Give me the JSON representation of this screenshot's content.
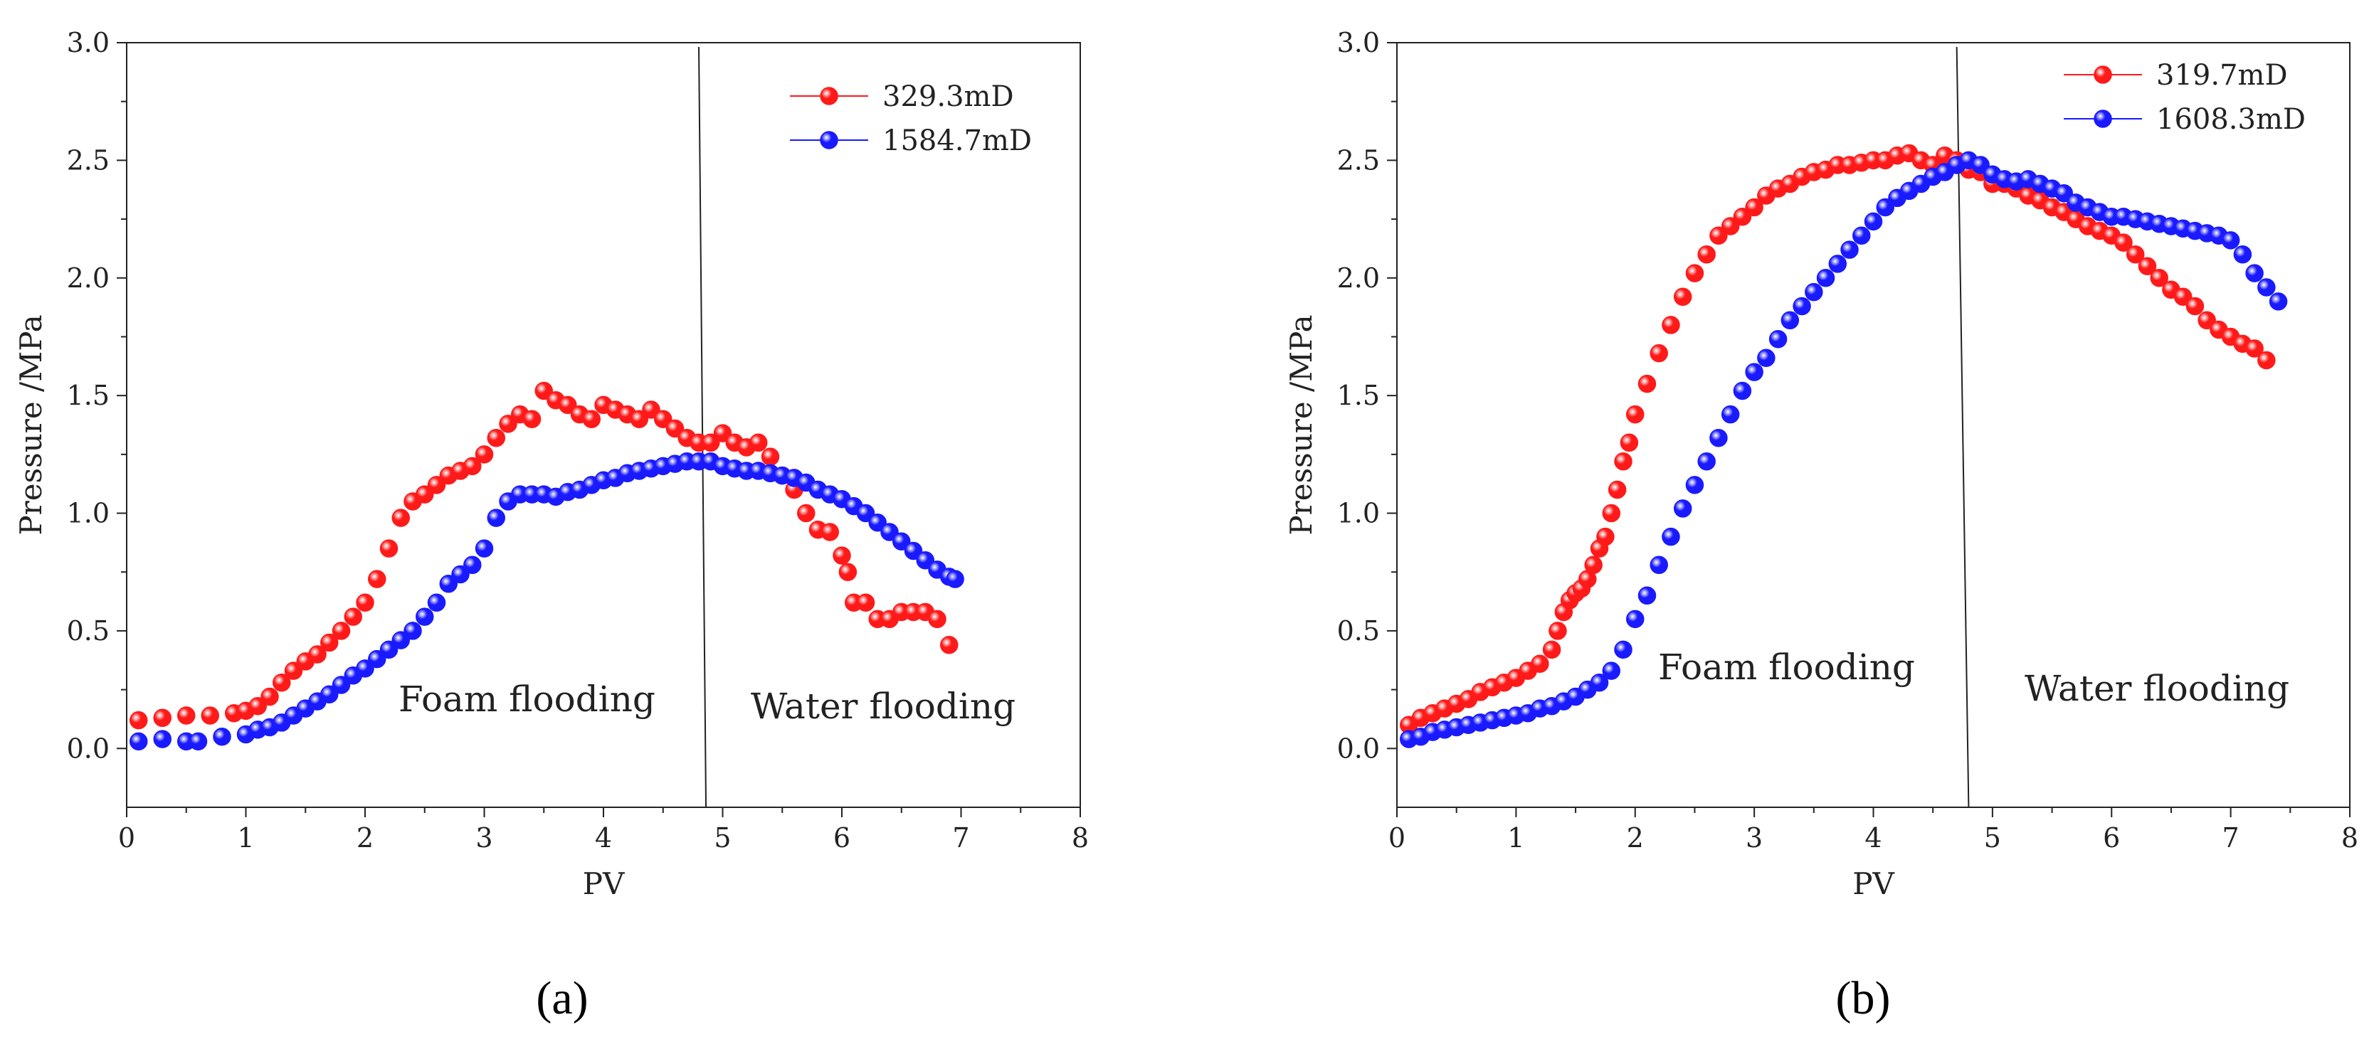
{
  "chart_data": [
    {
      "type": "scatter",
      "panel_label": "(a)",
      "xlabel": "PV",
      "ylabel": "Pressure /MPa",
      "xlim": [
        0,
        8
      ],
      "ylim": [
        -0.25,
        3.0
      ],
      "xticks": [
        "0",
        "1",
        "2",
        "3",
        "4",
        "5",
        "6",
        "7",
        "8"
      ],
      "yticks": [
        "0.0",
        "0.5",
        "1.0",
        "1.5",
        "2.0",
        "2.5",
        "3.0"
      ],
      "legend": {
        "placement": "top-right"
      },
      "annotations": [
        "Foam flooding",
        "Water flooding"
      ],
      "divider": {
        "x_top": 4.8,
        "x_bottom": 4.86
      },
      "series": [
        {
          "name": "329.3mD",
          "color": "#ff1a1a",
          "x": [
            0.1,
            0.3,
            0.5,
            0.7,
            0.9,
            1.0,
            1.1,
            1.2,
            1.3,
            1.4,
            1.5,
            1.6,
            1.7,
            1.8,
            1.9,
            2.0,
            2.1,
            2.2,
            2.3,
            2.4,
            2.5,
            2.6,
            2.7,
            2.8,
            2.9,
            3.0,
            3.1,
            3.2,
            3.3,
            3.4,
            3.5,
            3.6,
            3.7,
            3.8,
            3.9,
            4.0,
            4.1,
            4.2,
            4.3,
            4.4,
            4.5,
            4.6,
            4.7,
            4.8,
            4.9,
            5.0,
            5.1,
            5.2,
            5.3,
            5.4,
            5.5,
            5.6,
            5.7,
            5.8,
            5.9,
            6.0,
            6.05,
            6.1,
            6.2,
            6.3,
            6.4,
            6.5,
            6.6,
            6.7,
            6.8,
            6.9
          ],
          "y": [
            0.12,
            0.13,
            0.14,
            0.14,
            0.15,
            0.16,
            0.18,
            0.22,
            0.28,
            0.33,
            0.37,
            0.4,
            0.45,
            0.5,
            0.56,
            0.62,
            0.72,
            0.85,
            0.98,
            1.05,
            1.08,
            1.12,
            1.16,
            1.18,
            1.2,
            1.25,
            1.32,
            1.38,
            1.42,
            1.4,
            1.52,
            1.48,
            1.46,
            1.42,
            1.4,
            1.46,
            1.44,
            1.42,
            1.4,
            1.44,
            1.4,
            1.36,
            1.32,
            1.3,
            1.3,
            1.34,
            1.3,
            1.28,
            1.3,
            1.24,
            1.16,
            1.1,
            1.0,
            0.93,
            0.92,
            0.82,
            0.75,
            0.62,
            0.62,
            0.55,
            0.55,
            0.58,
            0.58,
            0.58,
            0.55,
            0.44
          ]
        },
        {
          "name": "1584.7mD",
          "color": "#1a1aff",
          "x": [
            0.1,
            0.3,
            0.5,
            0.6,
            0.8,
            1.0,
            1.1,
            1.2,
            1.3,
            1.4,
            1.5,
            1.6,
            1.7,
            1.8,
            1.9,
            2.0,
            2.1,
            2.2,
            2.3,
            2.4,
            2.5,
            2.6,
            2.7,
            2.8,
            2.9,
            3.0,
            3.1,
            3.2,
            3.3,
            3.4,
            3.5,
            3.6,
            3.7,
            3.8,
            3.9,
            4.0,
            4.1,
            4.2,
            4.3,
            4.4,
            4.5,
            4.6,
            4.7,
            4.8,
            4.9,
            5.0,
            5.1,
            5.2,
            5.3,
            5.4,
            5.5,
            5.6,
            5.7,
            5.8,
            5.9,
            6.0,
            6.1,
            6.2,
            6.3,
            6.4,
            6.5,
            6.6,
            6.7,
            6.8,
            6.9,
            6.95
          ],
          "y": [
            0.03,
            0.04,
            0.03,
            0.03,
            0.05,
            0.06,
            0.08,
            0.09,
            0.11,
            0.14,
            0.17,
            0.2,
            0.23,
            0.27,
            0.31,
            0.34,
            0.38,
            0.42,
            0.46,
            0.5,
            0.56,
            0.62,
            0.7,
            0.74,
            0.78,
            0.85,
            0.98,
            1.05,
            1.08,
            1.08,
            1.08,
            1.07,
            1.09,
            1.1,
            1.12,
            1.14,
            1.15,
            1.17,
            1.18,
            1.19,
            1.2,
            1.21,
            1.22,
            1.22,
            1.22,
            1.2,
            1.19,
            1.18,
            1.18,
            1.17,
            1.16,
            1.15,
            1.13,
            1.1,
            1.08,
            1.06,
            1.03,
            1.0,
            0.96,
            0.92,
            0.88,
            0.84,
            0.8,
            0.76,
            0.73,
            0.72
          ]
        }
      ]
    },
    {
      "type": "scatter",
      "panel_label": "(b)",
      "xlabel": "PV",
      "ylabel": "Pressure /MPa",
      "xlim": [
        0,
        8
      ],
      "ylim": [
        -0.25,
        3.0
      ],
      "xticks": [
        "0",
        "1",
        "2",
        "3",
        "4",
        "5",
        "6",
        "7",
        "8"
      ],
      "yticks": [
        "0.0",
        "0.5",
        "1.0",
        "1.5",
        "2.0",
        "2.5",
        "3.0"
      ],
      "legend": {
        "placement": "top-right"
      },
      "annotations": [
        "Foam flooding",
        "Water flooding"
      ],
      "divider": {
        "x_top": 4.7,
        "x_bottom": 4.8
      },
      "series": [
        {
          "name": "319.7mD",
          "color": "#ff1a1a",
          "x": [
            0.1,
            0.2,
            0.3,
            0.4,
            0.5,
            0.6,
            0.7,
            0.8,
            0.9,
            1.0,
            1.1,
            1.2,
            1.3,
            1.35,
            1.4,
            1.45,
            1.5,
            1.55,
            1.6,
            1.65,
            1.7,
            1.75,
            1.8,
            1.85,
            1.9,
            1.95,
            2.0,
            2.1,
            2.2,
            2.3,
            2.4,
            2.5,
            2.6,
            2.7,
            2.8,
            2.9,
            3.0,
            3.1,
            3.2,
            3.3,
            3.4,
            3.5,
            3.6,
            3.7,
            3.8,
            3.9,
            4.0,
            4.1,
            4.2,
            4.3,
            4.4,
            4.5,
            4.6,
            4.7,
            4.8,
            4.9,
            5.0,
            5.1,
            5.2,
            5.3,
            5.4,
            5.5,
            5.6,
            5.7,
            5.8,
            5.9,
            6.0,
            6.1,
            6.2,
            6.3,
            6.4,
            6.5,
            6.6,
            6.7,
            6.8,
            6.9,
            7.0,
            7.1,
            7.2,
            7.3
          ],
          "y": [
            0.1,
            0.13,
            0.15,
            0.17,
            0.19,
            0.21,
            0.24,
            0.26,
            0.28,
            0.3,
            0.33,
            0.36,
            0.42,
            0.5,
            0.58,
            0.63,
            0.66,
            0.68,
            0.72,
            0.78,
            0.85,
            0.9,
            1.0,
            1.1,
            1.22,
            1.3,
            1.42,
            1.55,
            1.68,
            1.8,
            1.92,
            2.02,
            2.1,
            2.18,
            2.22,
            2.26,
            2.3,
            2.35,
            2.38,
            2.4,
            2.43,
            2.45,
            2.46,
            2.48,
            2.48,
            2.49,
            2.5,
            2.5,
            2.52,
            2.53,
            2.5,
            2.48,
            2.52,
            2.5,
            2.46,
            2.45,
            2.4,
            2.4,
            2.38,
            2.35,
            2.33,
            2.3,
            2.28,
            2.25,
            2.22,
            2.2,
            2.18,
            2.15,
            2.1,
            2.05,
            2.0,
            1.95,
            1.92,
            1.88,
            1.82,
            1.78,
            1.75,
            1.72,
            1.7,
            1.65
          ]
        },
        {
          "name": "1608.3mD",
          "color": "#1a1aff",
          "x": [
            0.1,
            0.2,
            0.3,
            0.4,
            0.5,
            0.6,
            0.7,
            0.8,
            0.9,
            1.0,
            1.1,
            1.2,
            1.3,
            1.4,
            1.5,
            1.6,
            1.7,
            1.8,
            1.9,
            2.0,
            2.1,
            2.2,
            2.3,
            2.4,
            2.5,
            2.6,
            2.7,
            2.8,
            2.9,
            3.0,
            3.1,
            3.2,
            3.3,
            3.4,
            3.5,
            3.6,
            3.7,
            3.8,
            3.9,
            4.0,
            4.1,
            4.2,
            4.3,
            4.4,
            4.5,
            4.6,
            4.7,
            4.8,
            4.9,
            5.0,
            5.1,
            5.2,
            5.3,
            5.4,
            5.5,
            5.6,
            5.7,
            5.8,
            5.9,
            6.0,
            6.1,
            6.2,
            6.3,
            6.4,
            6.5,
            6.6,
            6.7,
            6.8,
            6.9,
            7.0,
            7.1,
            7.2,
            7.3,
            7.4
          ],
          "y": [
            0.04,
            0.05,
            0.07,
            0.08,
            0.09,
            0.1,
            0.11,
            0.12,
            0.13,
            0.14,
            0.15,
            0.17,
            0.18,
            0.2,
            0.22,
            0.25,
            0.28,
            0.33,
            0.42,
            0.55,
            0.65,
            0.78,
            0.9,
            1.02,
            1.12,
            1.22,
            1.32,
            1.42,
            1.52,
            1.6,
            1.66,
            1.74,
            1.82,
            1.88,
            1.94,
            2.0,
            2.06,
            2.12,
            2.18,
            2.24,
            2.3,
            2.34,
            2.37,
            2.4,
            2.43,
            2.45,
            2.48,
            2.5,
            2.48,
            2.44,
            2.42,
            2.41,
            2.42,
            2.4,
            2.38,
            2.36,
            2.32,
            2.3,
            2.28,
            2.26,
            2.26,
            2.25,
            2.24,
            2.23,
            2.22,
            2.21,
            2.2,
            2.19,
            2.18,
            2.16,
            2.1,
            2.02,
            1.96,
            1.9
          ]
        }
      ]
    }
  ]
}
